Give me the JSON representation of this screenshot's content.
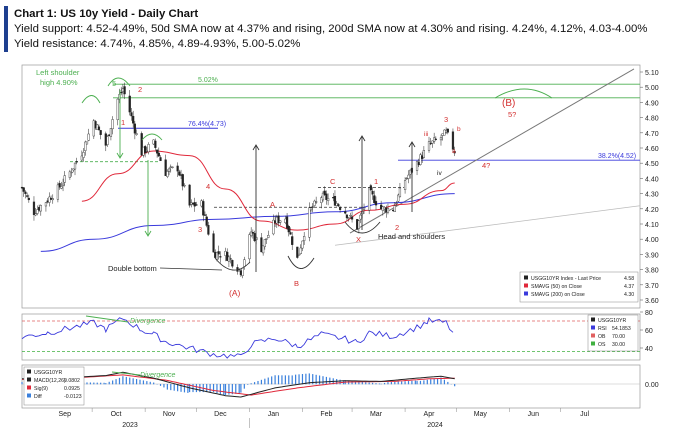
{
  "header": {
    "title": "Chart 1: US 10y Yield - Daily Chart",
    "support": "Yield support: 4.52-4.49%, 50d SMA now at 4.37% and rising, 200d SMA now at 4.30% and rising. 4.24%, 4.12%, 4.03-4.00%",
    "resistance": "Yield resistance: 4.74%, 4.85%, 4.89-4.93%, 5.00-5.02%"
  },
  "chart_data": [
    {
      "type": "candlestick",
      "panel": "price",
      "ylim": [
        3.6,
        5.1
      ],
      "y_ticks": [
        "5.10",
        "5.00",
        "4.90",
        "4.80",
        "4.70",
        "4.60",
        "4.50",
        "4.40",
        "4.30",
        "4.20",
        "4.10",
        "4.00",
        "3.90",
        "3.80",
        "3.70",
        "3.60"
      ],
      "x_ticks": [
        "Sep",
        "Oct",
        "Nov",
        "Dec",
        "Jan",
        "Feb",
        "Mar",
        "Apr",
        "May",
        "Jun",
        "Jul"
      ],
      "years": [
        "2023",
        "2024"
      ],
      "series_close": [
        [
          "2023-08-21",
          4.34
        ],
        [
          "2023-08-28",
          4.18
        ],
        [
          "2023-09-05",
          4.26
        ],
        [
          "2023-09-11",
          4.33
        ],
        [
          "2023-09-18",
          4.44
        ],
        [
          "2023-09-25",
          4.57
        ],
        [
          "2023-10-02",
          4.78
        ],
        [
          "2023-10-09",
          4.62
        ],
        [
          "2023-10-16",
          4.92
        ],
        [
          "2023-10-19",
          4.99
        ],
        [
          "2023-10-23",
          4.84
        ],
        [
          "2023-10-30",
          4.57
        ],
        [
          "2023-11-06",
          4.63
        ],
        [
          "2023-11-13",
          4.44
        ],
        [
          "2023-11-20",
          4.47
        ],
        [
          "2023-11-27",
          4.22
        ],
        [
          "2023-12-04",
          4.23
        ],
        [
          "2023-12-11",
          3.91
        ],
        [
          "2023-12-18",
          3.9
        ],
        [
          "2023-12-27",
          3.79
        ],
        [
          "2024-01-02",
          4.05
        ],
        [
          "2024-01-08",
          3.94
        ],
        [
          "2024-01-16",
          4.12
        ],
        [
          "2024-01-22",
          4.14
        ],
        [
          "2024-01-29",
          3.87
        ],
        [
          "2024-02-05",
          4.18
        ],
        [
          "2024-02-12",
          4.28
        ],
        [
          "2024-02-20",
          4.25
        ],
        [
          "2024-02-26",
          4.18
        ],
        [
          "2024-03-04",
          4.08
        ],
        [
          "2024-03-11",
          4.31
        ],
        [
          "2024-03-18",
          4.2
        ],
        [
          "2024-03-25",
          4.2
        ],
        [
          "2024-04-01",
          4.39
        ],
        [
          "2024-04-08",
          4.5
        ],
        [
          "2024-04-15",
          4.62
        ],
        [
          "2024-04-22",
          4.67
        ],
        [
          "2024-04-25",
          4.7
        ],
        [
          "2024-04-30",
          4.58
        ]
      ],
      "sma50": [
        [
          "2023-09-25",
          4.25
        ],
        [
          "2023-10-16",
          4.43
        ],
        [
          "2023-11-06",
          4.58
        ],
        [
          "2023-11-27",
          4.55
        ],
        [
          "2023-12-18",
          4.33
        ],
        [
          "2024-01-08",
          4.12
        ],
        [
          "2024-01-29",
          4.06
        ],
        [
          "2024-02-20",
          4.1
        ],
        [
          "2024-03-11",
          4.19
        ],
        [
          "2024-04-01",
          4.23
        ],
        [
          "2024-04-22",
          4.32
        ],
        [
          "2024-04-30",
          4.37
        ]
      ],
      "sma200": [
        [
          "2023-09-01",
          3.92
        ],
        [
          "2023-10-02",
          4.0
        ],
        [
          "2023-11-06",
          4.09
        ],
        [
          "2023-12-11",
          4.13
        ],
        [
          "2024-01-16",
          4.15
        ],
        [
          "2024-02-20",
          4.18
        ],
        [
          "2024-03-25",
          4.24
        ],
        [
          "2024-04-30",
          4.3
        ]
      ],
      "levels": [
        {
          "label": "5.02%",
          "value": 5.02
        },
        {
          "label": "",
          "value": 4.93
        },
        {
          "label": "76.4%(4.73)",
          "value": 4.73
        },
        {
          "label": "38.2%(4.52)",
          "value": 4.52
        }
      ],
      "annotations": [
        "Left shoulder",
        "high 4.90%",
        "Double bottom",
        "Head and shoulders",
        "(A)",
        "(B)",
        "A",
        "B",
        "C",
        "X",
        "1",
        "2",
        "3",
        "4",
        "5?",
        "4?",
        "iii",
        "iv",
        "a",
        "b",
        "5"
      ],
      "legend": [
        {
          "label": "USGG10YR Index - Last Price",
          "value": "4.58",
          "color": "#222222"
        },
        {
          "label": "SMAVG (50)  on Close",
          "value": "4.37",
          "color": "#e0283a"
        },
        {
          "label": "SMAVG (200)  on Close",
          "value": "4.30",
          "color": "#3a3adc"
        }
      ]
    },
    {
      "type": "line",
      "panel": "rsi",
      "ylim": [
        30,
        80
      ],
      "y_ticks": [
        "80",
        "60",
        "40"
      ],
      "annotation": "Divergence",
      "legend": [
        {
          "label": "USGG10YR",
          "value": "",
          "color": "#222222"
        },
        {
          "label": "RSI",
          "value": "54.1853",
          "color": "#3a3adc"
        },
        {
          "label": "OB",
          "value": "70.00",
          "color": "#e06060"
        },
        {
          "label": "OS",
          "value": "30.00",
          "color": "#40b040"
        }
      ],
      "values": [
        [
          "2023-08-21",
          52
        ],
        [
          "2023-09-05",
          57
        ],
        [
          "2023-09-18",
          62
        ],
        [
          "2023-10-02",
          68
        ],
        [
          "2023-10-09",
          61
        ],
        [
          "2023-10-19",
          73
        ],
        [
          "2023-10-30",
          60
        ],
        [
          "2023-11-06",
          55
        ],
        [
          "2023-11-13",
          47
        ],
        [
          "2023-11-27",
          40
        ],
        [
          "2023-12-11",
          33
        ],
        [
          "2023-12-27",
          30
        ],
        [
          "2024-01-02",
          44
        ],
        [
          "2024-01-16",
          51
        ],
        [
          "2024-01-29",
          42
        ],
        [
          "2024-02-12",
          55
        ],
        [
          "2024-02-26",
          50
        ],
        [
          "2024-03-04",
          46
        ],
        [
          "2024-03-11",
          57
        ],
        [
          "2024-03-25",
          53
        ],
        [
          "2024-04-08",
          63
        ],
        [
          "2024-04-15",
          70
        ],
        [
          "2024-04-25",
          68
        ],
        [
          "2024-04-30",
          54
        ]
      ]
    },
    {
      "type": "line",
      "panel": "macd",
      "y_ticks": [
        "0.00"
      ],
      "annotation": "Divergence",
      "legend": [
        {
          "label": "USGG10YR",
          "value": "",
          "color": "#222222"
        },
        {
          "label": "MACD(12,26)",
          "value": "0.0802",
          "color": "#222222"
        },
        {
          "label": "Sig(9)",
          "value": "0.0925",
          "color": "#e0283a"
        },
        {
          "label": "Diff",
          "value": "-0.0123",
          "color": "#3a80dc"
        }
      ],
      "macd": [
        [
          "2023-08-21",
          0.08
        ],
        [
          "2023-09-18",
          0.1
        ],
        [
          "2023-10-09",
          0.13
        ],
        [
          "2023-10-19",
          0.18
        ],
        [
          "2023-11-06",
          0.09
        ],
        [
          "2023-11-27",
          -0.06
        ],
        [
          "2023-12-18",
          -0.18
        ],
        [
          "2023-12-27",
          -0.2
        ],
        [
          "2024-01-16",
          -0.06
        ],
        [
          "2024-02-05",
          0.02
        ],
        [
          "2024-02-26",
          0.05
        ],
        [
          "2024-03-18",
          0.04
        ],
        [
          "2024-04-08",
          0.09
        ],
        [
          "2024-04-22",
          0.12
        ],
        [
          "2024-04-30",
          0.08
        ]
      ],
      "signal": [
        [
          "2023-08-21",
          0.07
        ],
        [
          "2023-09-18",
          0.09
        ],
        [
          "2023-10-19",
          0.14
        ],
        [
          "2023-11-13",
          0.06
        ],
        [
          "2023-12-11",
          -0.1
        ],
        [
          "2024-01-02",
          -0.17
        ],
        [
          "2024-01-29",
          -0.06
        ],
        [
          "2024-02-26",
          0.03
        ],
        [
          "2024-03-25",
          0.04
        ],
        [
          "2024-04-15",
          0.08
        ],
        [
          "2024-04-30",
          0.09
        ]
      ]
    }
  ]
}
